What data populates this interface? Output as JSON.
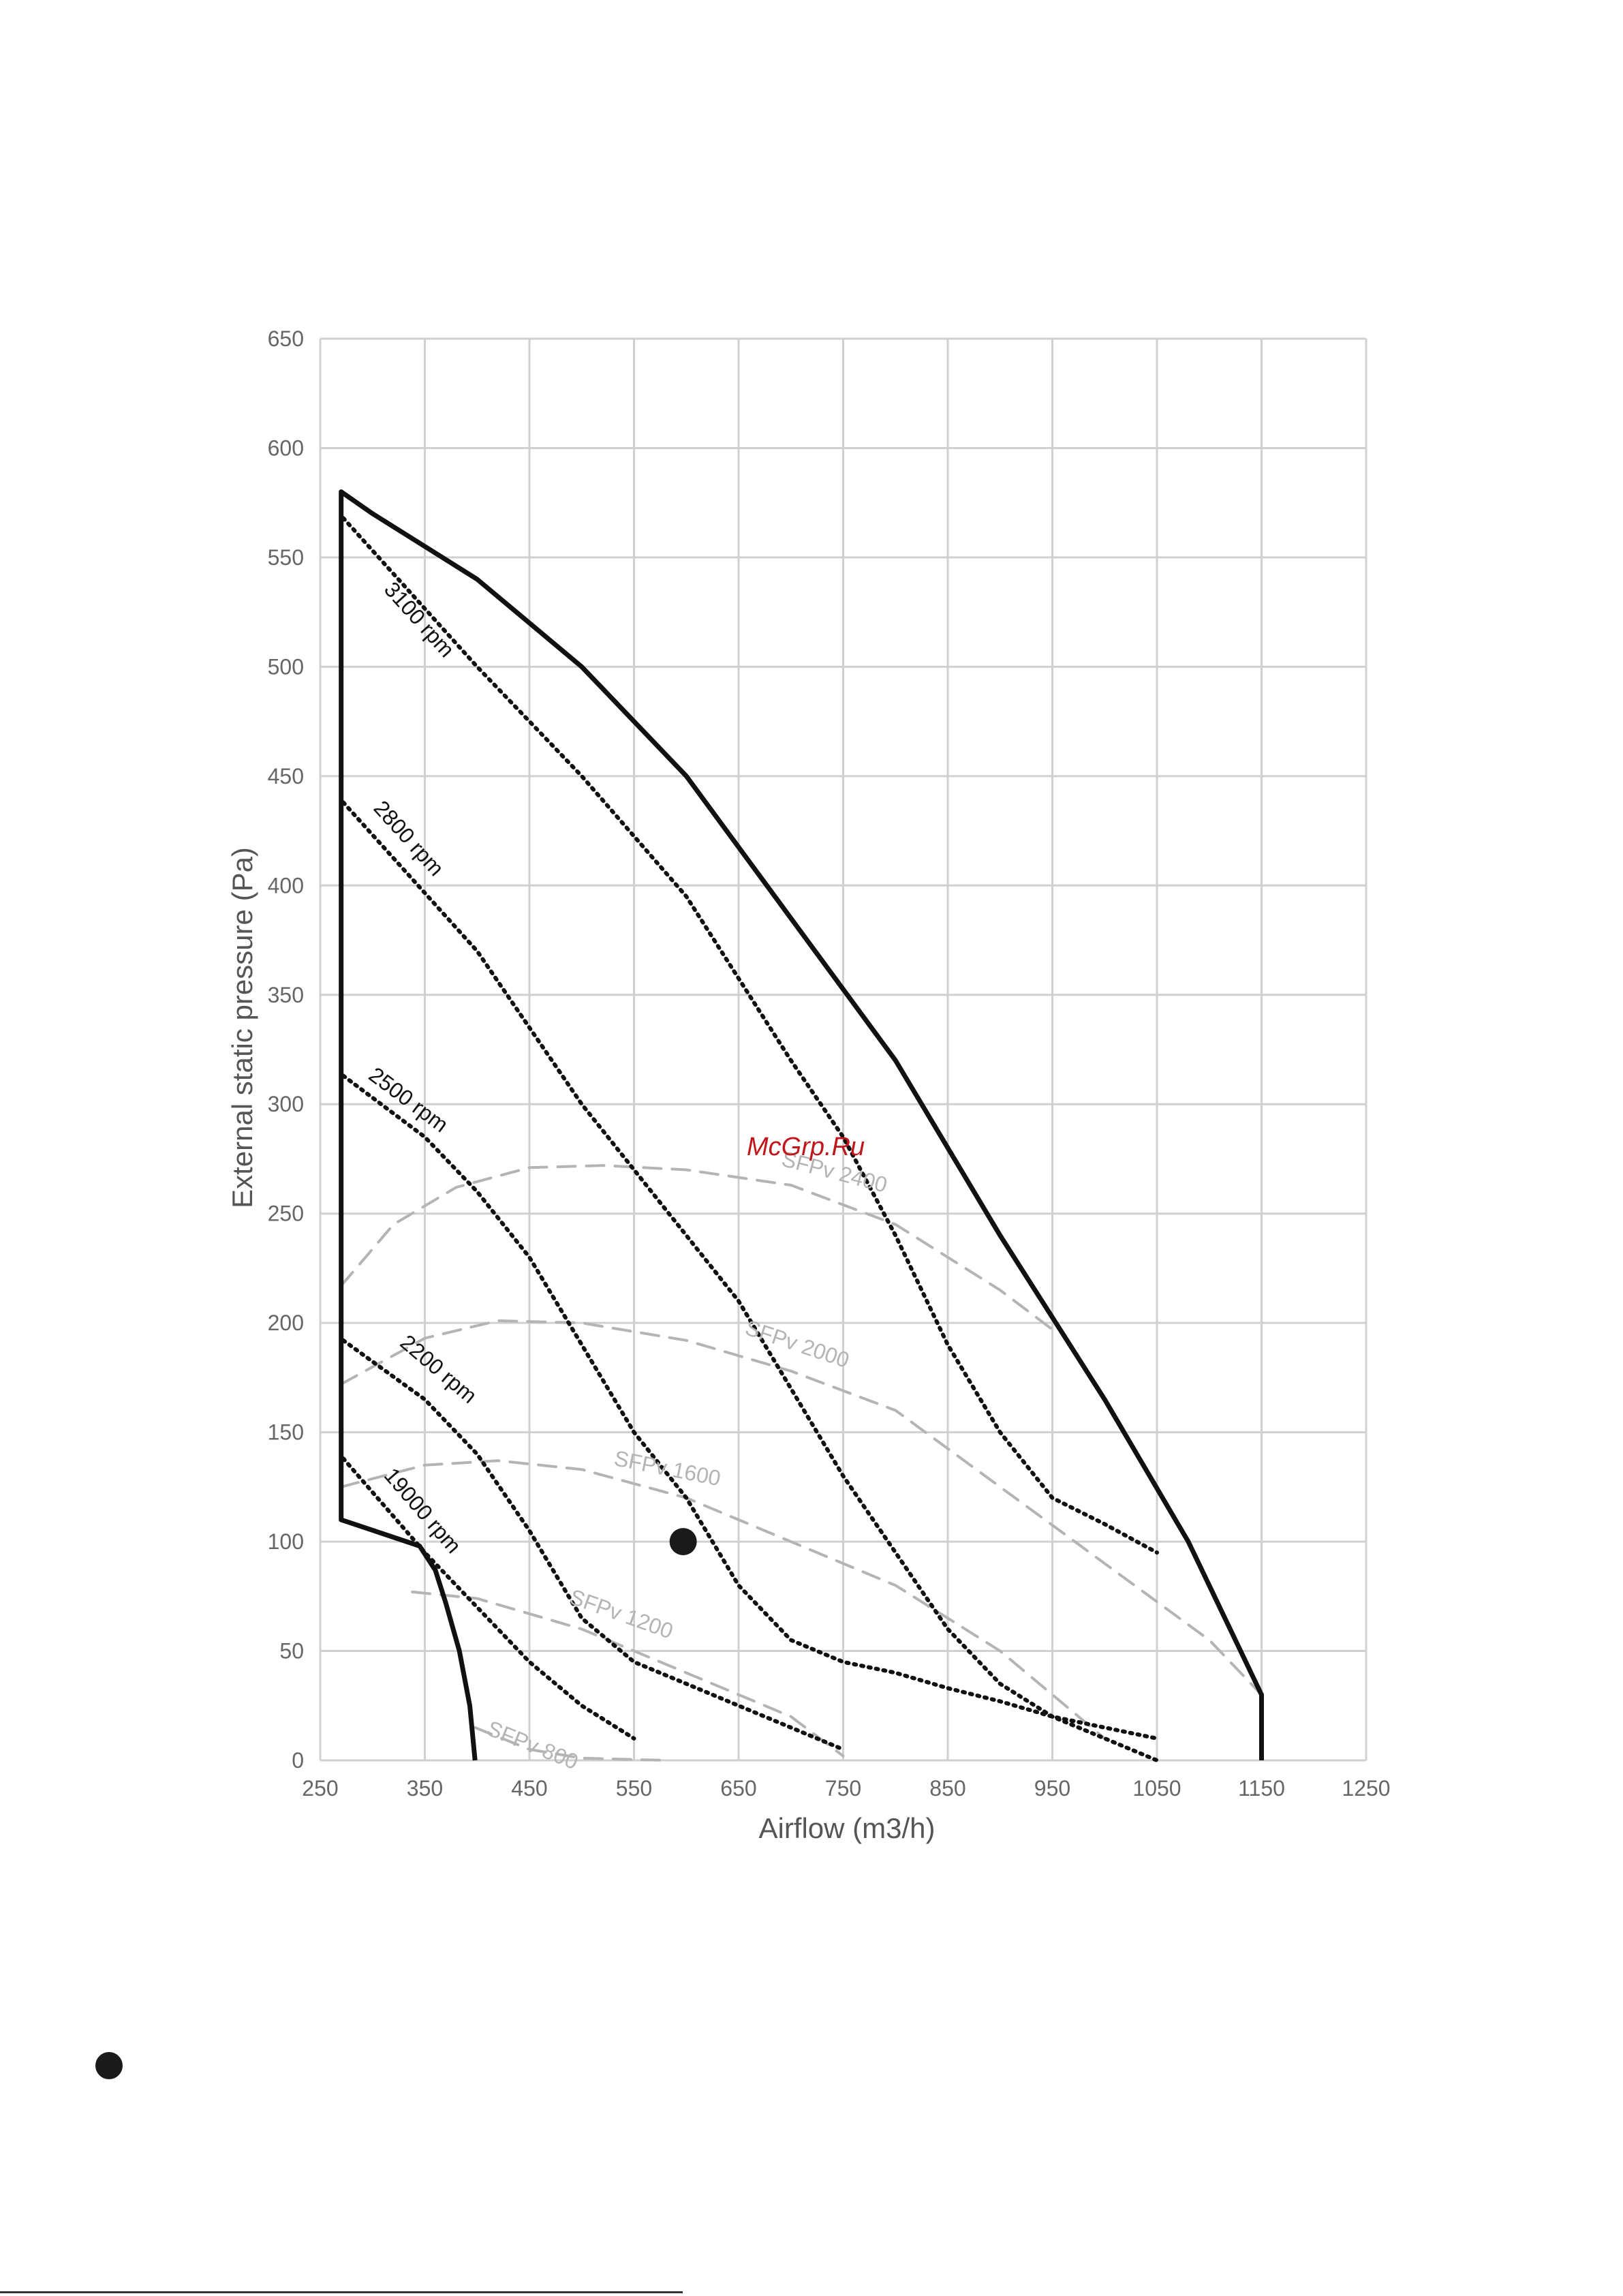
{
  "colors": {
    "grid": "#d0d0d0",
    "envelope": "#111111",
    "rpm_curves": "#111111",
    "sfp_curves": "#b4b4b4",
    "point": "#1a1a1a",
    "watermark": "#c0161c"
  },
  "watermark": "McGrp.Ru",
  "chart_data": {
    "type": "line",
    "xlabel": "Airflow (m3/h)",
    "ylabel": "External static pressure  (Pa)",
    "xlim": [
      250,
      1250
    ],
    "ylim": [
      0,
      650
    ],
    "xticks": [
      "250",
      "350",
      "450",
      "550",
      "650",
      "750",
      "850",
      "950",
      "1050",
      "1150",
      "1250"
    ],
    "yticks": [
      "0",
      "50",
      "100",
      "150",
      "200",
      "250",
      "300",
      "350",
      "400",
      "450",
      "500",
      "550",
      "600",
      "650"
    ],
    "grid": true,
    "envelope": {
      "points": [
        [
          398,
          0
        ],
        [
          393,
          25
        ],
        [
          383,
          50
        ],
        [
          370,
          72
        ],
        [
          360,
          87
        ],
        [
          345,
          98
        ],
        [
          270,
          110
        ],
        [
          270,
          580
        ],
        [
          300,
          570
        ],
        [
          400,
          540
        ],
        [
          500,
          500
        ],
        [
          600,
          450
        ],
        [
          700,
          385
        ],
        [
          800,
          320
        ],
        [
          900,
          240
        ],
        [
          1000,
          165
        ],
        [
          1080,
          100
        ],
        [
          1150,
          30
        ],
        [
          1150,
          0
        ]
      ]
    },
    "series": [
      {
        "name": "3100 rpm",
        "style": "dotted",
        "label_text": "3100 rpm",
        "label_at": [
          310,
          535
        ],
        "points": [
          [
            272,
            568
          ],
          [
            400,
            500
          ],
          [
            500,
            450
          ],
          [
            600,
            395
          ],
          [
            700,
            320
          ],
          [
            750,
            285
          ],
          [
            800,
            240
          ],
          [
            850,
            190
          ],
          [
            900,
            150
          ],
          [
            950,
            120
          ],
          [
            1000,
            108
          ],
          [
            1050,
            95
          ]
        ]
      },
      {
        "name": "2800 rpm",
        "style": "dotted",
        "label_text": "2800 rpm",
        "label_at": [
          300,
          435
        ],
        "points": [
          [
            272,
            438
          ],
          [
            400,
            370
          ],
          [
            500,
            300
          ],
          [
            600,
            240
          ],
          [
            650,
            210
          ],
          [
            700,
            170
          ],
          [
            750,
            130
          ],
          [
            800,
            95
          ],
          [
            850,
            60
          ],
          [
            900,
            35
          ],
          [
            950,
            20
          ],
          [
            1000,
            10
          ],
          [
            1050,
            0
          ]
        ]
      },
      {
        "name": "2500 rpm",
        "style": "dotted",
        "label_text": "2500 rpm",
        "label_at": [
          295,
          312
        ],
        "points": [
          [
            272,
            313
          ],
          [
            350,
            285
          ],
          [
            400,
            260
          ],
          [
            450,
            230
          ],
          [
            500,
            190
          ],
          [
            550,
            150
          ],
          [
            600,
            120
          ],
          [
            650,
            80
          ],
          [
            700,
            55
          ],
          [
            750,
            45
          ],
          [
            800,
            40
          ],
          [
            850,
            33
          ],
          [
            900,
            27
          ],
          [
            950,
            20
          ],
          [
            1000,
            15
          ],
          [
            1050,
            10
          ]
        ]
      },
      {
        "name": "2200 rpm",
        "style": "dotted",
        "label_text": "2200 rpm",
        "label_at": [
          325,
          190
        ],
        "points": [
          [
            272,
            192
          ],
          [
            350,
            165
          ],
          [
            400,
            140
          ],
          [
            450,
            105
          ],
          [
            500,
            65
          ],
          [
            550,
            45
          ],
          [
            600,
            35
          ],
          [
            650,
            25
          ],
          [
            700,
            15
          ],
          [
            750,
            5
          ]
        ]
      },
      {
        "name": "19000 rpm",
        "style": "dotted",
        "label_text": "19000 rpm",
        "label_at": [
          310,
          130
        ],
        "points": [
          [
            272,
            138
          ],
          [
            350,
            95
          ],
          [
            400,
            70
          ],
          [
            450,
            45
          ],
          [
            500,
            25
          ],
          [
            550,
            10
          ]
        ]
      },
      {
        "name": "SFPv 2400",
        "style": "dashed",
        "label_text": "SFPv  2400",
        "label_at": [
          690,
          272
        ],
        "points": [
          [
            270,
            217
          ],
          [
            320,
            245
          ],
          [
            380,
            262
          ],
          [
            450,
            271
          ],
          [
            520,
            272
          ],
          [
            600,
            270
          ],
          [
            700,
            263
          ],
          [
            800,
            245
          ],
          [
            900,
            215
          ],
          [
            950,
            197
          ]
        ]
      },
      {
        "name": "SFPv 2000",
        "style": "dashed",
        "label_text": "SFPv  2000",
        "label_at": [
          655,
          195
        ],
        "points": [
          [
            270,
            172
          ],
          [
            350,
            193
          ],
          [
            420,
            201
          ],
          [
            500,
            200
          ],
          [
            600,
            192
          ],
          [
            700,
            178
          ],
          [
            800,
            160
          ],
          [
            900,
            125
          ],
          [
            1000,
            90
          ],
          [
            1100,
            55
          ],
          [
            1150,
            30
          ]
        ]
      },
      {
        "name": "SFPv 1600",
        "style": "dashed",
        "label_text": "SFPv  1600",
        "label_at": [
          530,
          135
        ],
        "points": [
          [
            270,
            125
          ],
          [
            350,
            135
          ],
          [
            420,
            137
          ],
          [
            500,
            133
          ],
          [
            600,
            120
          ],
          [
            700,
            100
          ],
          [
            800,
            80
          ],
          [
            900,
            50
          ],
          [
            1000,
            10
          ]
        ]
      },
      {
        "name": "SFPv 1200",
        "style": "dashed",
        "label_text": "SFPv  1200",
        "label_at": [
          487,
          72
        ],
        "points": [
          [
            338,
            77
          ],
          [
            400,
            74
          ],
          [
            500,
            60
          ],
          [
            600,
            40
          ],
          [
            700,
            20
          ],
          [
            750,
            2
          ]
        ]
      },
      {
        "name": "SFPv 800",
        "style": "dashed",
        "label_text": "SFPv  800",
        "label_at": [
          408,
          12
        ],
        "points": [
          [
            398,
            15
          ],
          [
            450,
            5
          ],
          [
            500,
            1
          ],
          [
            580,
            0
          ]
        ]
      }
    ],
    "operating_point": {
      "x": 597,
      "y": 100
    }
  }
}
